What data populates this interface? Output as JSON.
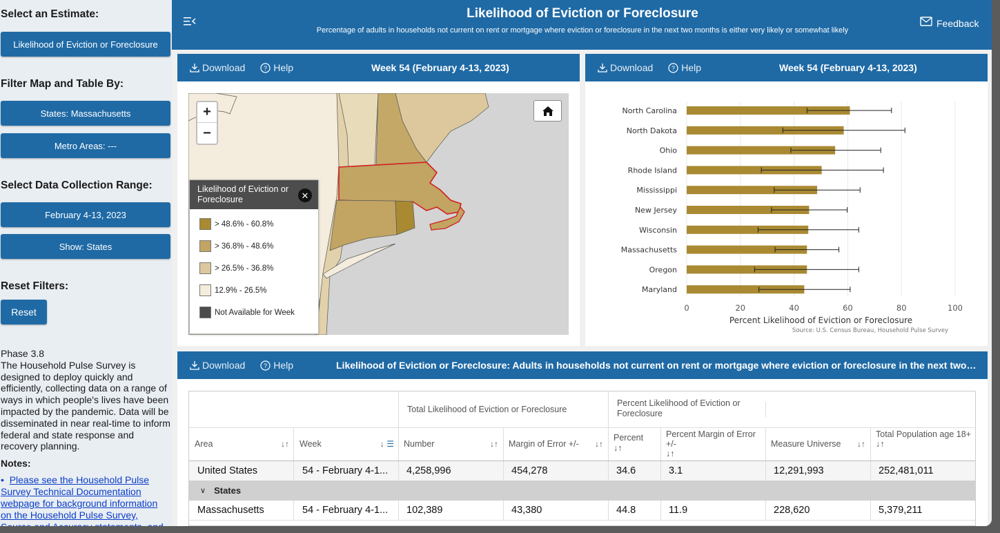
{
  "sidebar": {
    "select_estimate": "Select an Estimate:",
    "estimate_button": "Likelihood of Eviction or Foreclosure",
    "filter_heading": "Filter Map and Table By:",
    "states_button": "States: Massachusetts",
    "metro_button": "Metro Areas: ---",
    "range_heading": "Select Data Collection Range:",
    "range_button": "February 4-13, 2023",
    "show_button": "Show: States",
    "reset_heading": "Reset Filters:",
    "reset_button": "Reset",
    "phase": "Phase 3.8",
    "description": "The Household Pulse Survey is designed to deploy quickly and efficiently, collecting data on a range of ways in which people's lives have been impacted by the pandemic. Data will be disseminated in near real-time to inform federal and state response and recovery planning.",
    "notes_heading": "Notes:",
    "notes_link": "Please see the Household Pulse Survey Technical Documentation webpage for background information on the Household Pulse Survey, Source and Accuracy statements, and User"
  },
  "header": {
    "title": "Likelihood of Eviction or Foreclosure",
    "subtitle": "Percentage of adults in households not current on rent or mortgage where eviction or foreclosure in the next two months is either very likely or somewhat likely",
    "feedback": "Feedback"
  },
  "map_panel": {
    "download": "Download",
    "help": "Help",
    "title": "Week 54 (February 4-13, 2023)",
    "legend_title": "Likelihood of Eviction or Foreclosure",
    "legend_items": [
      {
        "label": "> 48.6% - 60.8%",
        "color": "#a98a33"
      },
      {
        "label": "> 36.8% - 48.6%",
        "color": "#c2a463"
      },
      {
        "label": "> 26.5% - 36.8%",
        "color": "#dcc89c"
      },
      {
        "label": "12.9% - 26.5%",
        "color": "#f5eddc"
      },
      {
        "label": "Not Available for Week",
        "color": "#4d4d4d"
      }
    ]
  },
  "chart_panel": {
    "download": "Download",
    "help": "Help",
    "title": "Week 54 (February 4-13, 2023)"
  },
  "chart_data": {
    "type": "bar",
    "orientation": "horizontal",
    "categories": [
      "North Carolina",
      "North Dakota",
      "Ohio",
      "Rhode Island",
      "Mississippi",
      "New Jersey",
      "Wisconsin",
      "Massachusetts",
      "Oregon",
      "Maryland"
    ],
    "values": [
      60.8,
      58.5,
      55.3,
      50.3,
      48.6,
      45.6,
      45.3,
      44.8,
      44.8,
      43.8
    ],
    "error_low": [
      44.8,
      35.8,
      38.8,
      27.8,
      32.6,
      31.6,
      26.6,
      32.9,
      25.3,
      26.9
    ],
    "error_high": [
      76.3,
      81.3,
      72.3,
      73.3,
      64.6,
      59.8,
      64.1,
      56.7,
      64.1,
      60.9
    ],
    "xlabel": "Percent Likelihood of Eviction or Foreclosure",
    "source": "Source: U.S. Census Bureau, Household Pulse Survey",
    "xlim": [
      0,
      100
    ],
    "xticks": [
      0,
      20,
      40,
      60,
      80,
      100
    ],
    "bar_color": "#a98a33",
    "grid": true
  },
  "table_panel": {
    "download": "Download",
    "help": "Help",
    "title": "Likelihood of Eviction or Foreclosure: Adults in households not current on rent or mortgage where eviction or foreclosure in the next two mo...",
    "group_total": "Total Likelihood of Eviction or Foreclosure",
    "group_percent": "Percent Likelihood of Eviction or Foreclosure",
    "columns": [
      "Area",
      "Week",
      "Number",
      "Margin of Error +/-",
      "Percent",
      "Percent Margin of Error +/-",
      "Measure Universe",
      "Total Population age 18+"
    ],
    "us_row": [
      "United States",
      "54 - February 4-1...",
      "4,258,996",
      "454,278",
      "34.6",
      "3.1",
      "12,291,993",
      "252,481,011"
    ],
    "group_label": "States",
    "ma_row": [
      "Massachusetts",
      "54 - February 4-1...",
      "102,389",
      "43,380",
      "44.8",
      "11.9",
      "228,620",
      "5,379,211"
    ]
  }
}
